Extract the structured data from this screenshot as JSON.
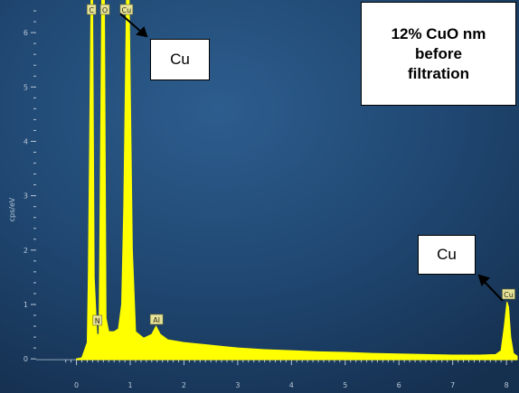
{
  "chart_data": {
    "type": "line",
    "title": "",
    "xlabel": "",
    "ylabel": "cps/eV",
    "xlim": [
      -0.75,
      8.2
    ],
    "ylim": [
      -0.18,
      6.6
    ],
    "x_ticks": [
      "0",
      "1",
      "2",
      "3",
      "4",
      "5",
      "6",
      "7",
      "8"
    ],
    "y_ticks": [
      "0",
      "1",
      "2",
      "3",
      "4",
      "5",
      "6"
    ],
    "series": [
      {
        "name": "",
        "fill_color": "#ffff00",
        "x": [
          0.0,
          0.1,
          0.2,
          0.22,
          0.27,
          0.3,
          0.33,
          0.38,
          0.42,
          0.47,
          0.52,
          0.55,
          0.6,
          0.64,
          0.7,
          0.78,
          0.84,
          0.88,
          0.93,
          0.98,
          1.04,
          1.1,
          1.25,
          1.4,
          1.48,
          1.56,
          1.7,
          2.0,
          2.5,
          3.0,
          3.5,
          4.0,
          4.5,
          5.0,
          5.5,
          6.0,
          6.5,
          7.0,
          7.5,
          7.8,
          7.9,
          7.96,
          8.01,
          8.04,
          8.08,
          8.13,
          8.2
        ],
        "y": [
          0.0,
          0.02,
          0.3,
          1.5,
          7.0,
          7.0,
          1.5,
          0.45,
          0.45,
          7.0,
          7.0,
          0.75,
          0.5,
          0.5,
          0.5,
          0.55,
          1.0,
          2.8,
          7.0,
          7.0,
          2.0,
          0.5,
          0.38,
          0.45,
          0.6,
          0.45,
          0.35,
          0.3,
          0.25,
          0.2,
          0.17,
          0.15,
          0.13,
          0.12,
          0.1,
          0.09,
          0.08,
          0.07,
          0.07,
          0.08,
          0.15,
          0.6,
          1.05,
          0.95,
          0.4,
          0.1,
          0.05
        ]
      }
    ],
    "element_labels": [
      {
        "text": "C",
        "x": 0.28
      },
      {
        "text": "O",
        "x": 0.53
      },
      {
        "text": "Cu",
        "x": 0.93
      },
      {
        "text": "N",
        "x": 0.39
      },
      {
        "text": "Al",
        "x": 1.49
      },
      {
        "text": "Cu",
        "x": 8.04
      }
    ],
    "grid": false,
    "background_color": "#1f4670"
  },
  "callouts": {
    "cu_top": "Cu",
    "cu_right": "Cu",
    "sample_line1": "12% CuO nm",
    "sample_line2": "before",
    "sample_line3": "filtration"
  }
}
